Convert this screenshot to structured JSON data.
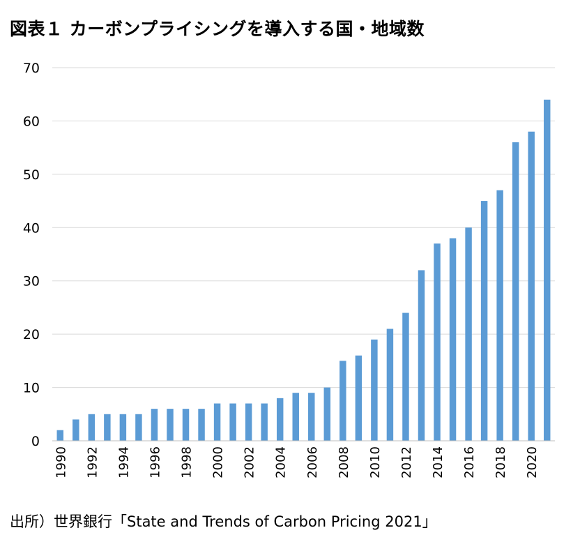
{
  "chart_data": {
    "type": "bar",
    "title": "図表１ カーボンプライシングを導入する国・地域数",
    "xlabel": "",
    "ylabel": "",
    "ylim": [
      0,
      70
    ],
    "yticks": [
      0,
      10,
      20,
      30,
      40,
      50,
      60,
      70
    ],
    "grid": true,
    "legend": "none",
    "bar_color": "#5b9bd5",
    "grid_color": "#d9d9d9",
    "categories": [
      "1990",
      "1991",
      "1992",
      "1993",
      "1994",
      "1995",
      "1996",
      "1997",
      "1998",
      "1999",
      "2000",
      "2001",
      "2002",
      "2003",
      "2004",
      "2005",
      "2006",
      "2007",
      "2008",
      "2009",
      "2010",
      "2011",
      "2012",
      "2013",
      "2014",
      "2015",
      "2016",
      "2017",
      "2018",
      "2019",
      "2020",
      "2021"
    ],
    "category_labels": [
      "1990",
      "",
      "1992",
      "",
      "1994",
      "",
      "1996",
      "",
      "1998",
      "",
      "2000",
      "",
      "2002",
      "",
      "2004",
      "",
      "2006",
      "",
      "2008",
      "",
      "2010",
      "",
      "2012",
      "",
      "2014",
      "",
      "2016",
      "",
      "2018",
      "",
      "2020",
      ""
    ],
    "values": [
      2,
      4,
      5,
      5,
      5,
      5,
      6,
      6,
      6,
      6,
      7,
      7,
      7,
      7,
      8,
      9,
      9,
      10,
      15,
      16,
      19,
      21,
      24,
      32,
      37,
      38,
      40,
      45,
      47,
      56,
      58,
      64
    ]
  },
  "source": "出所）世界銀行「State and Trends of Carbon Pricing 2021」"
}
